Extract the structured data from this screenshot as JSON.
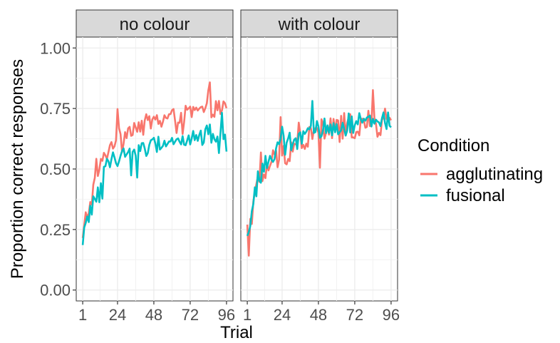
{
  "chart_data": {
    "type": "line",
    "xlabel": "Trial",
    "ylabel": "Proportion correct responses",
    "xlim": [
      1,
      96
    ],
    "ylim": [
      0,
      1
    ],
    "x_ticks": [
      1,
      24,
      48,
      72,
      96
    ],
    "x_tick_labels": [
      "1",
      "24",
      "48",
      "72",
      "96"
    ],
    "y_ticks": [
      0,
      0.25,
      0.5,
      0.75,
      1.0
    ],
    "y_tick_labels": [
      "0.00",
      "0.25",
      "0.50",
      "0.75",
      "1.00"
    ],
    "grid": true,
    "legend": {
      "title": "Condition",
      "position": "right",
      "entries": [
        {
          "label": "agglutinating",
          "color": "#F8766D"
        },
        {
          "label": "fusional",
          "color": "#00BFC4"
        }
      ]
    },
    "facets": [
      {
        "title": "no colour",
        "series": [
          {
            "name": "agglutinating",
            "color": "#F8766D",
            "keypoints": [
              [
                1,
                0.2
              ],
              [
                3,
                0.3
              ],
              [
                6,
                0.35
              ],
              [
                9,
                0.45
              ],
              [
                12,
                0.5
              ],
              [
                16,
                0.56
              ],
              [
                20,
                0.6
              ],
              [
                24,
                0.64
              ],
              [
                30,
                0.66
              ],
              [
                36,
                0.68
              ],
              [
                42,
                0.69
              ],
              [
                48,
                0.7
              ],
              [
                56,
                0.71
              ],
              [
                64,
                0.72
              ],
              [
                72,
                0.73
              ],
              [
                80,
                0.74
              ],
              [
                88,
                0.75
              ],
              [
                96,
                0.75
              ]
            ],
            "noise": 0.035
          },
          {
            "name": "fusional",
            "color": "#00BFC4",
            "keypoints": [
              [
                1,
                0.17
              ],
              [
                3,
                0.28
              ],
              [
                6,
                0.33
              ],
              [
                9,
                0.38
              ],
              [
                12,
                0.42
              ],
              [
                16,
                0.5
              ],
              [
                20,
                0.54
              ],
              [
                24,
                0.56
              ],
              [
                30,
                0.56
              ],
              [
                36,
                0.57
              ],
              [
                42,
                0.58
              ],
              [
                48,
                0.6
              ],
              [
                56,
                0.61
              ],
              [
                64,
                0.62
              ],
              [
                72,
                0.62
              ],
              [
                80,
                0.63
              ],
              [
                88,
                0.64
              ],
              [
                96,
                0.64
              ]
            ],
            "noise": 0.035
          }
        ]
      },
      {
        "title": "with colour",
        "series": [
          {
            "name": "agglutinating",
            "color": "#F8766D",
            "keypoints": [
              [
                1,
                0.24
              ],
              [
                3,
                0.3
              ],
              [
                6,
                0.38
              ],
              [
                9,
                0.44
              ],
              [
                12,
                0.48
              ],
              [
                16,
                0.52
              ],
              [
                20,
                0.54
              ],
              [
                24,
                0.56
              ],
              [
                30,
                0.59
              ],
              [
                36,
                0.61
              ],
              [
                42,
                0.63
              ],
              [
                48,
                0.65
              ],
              [
                56,
                0.66
              ],
              [
                64,
                0.67
              ],
              [
                72,
                0.68
              ],
              [
                80,
                0.68
              ],
              [
                88,
                0.69
              ],
              [
                96,
                0.7
              ]
            ],
            "noise": 0.06
          },
          {
            "name": "fusional",
            "color": "#00BFC4",
            "keypoints": [
              [
                1,
                0.2
              ],
              [
                3,
                0.3
              ],
              [
                6,
                0.4
              ],
              [
                9,
                0.47
              ],
              [
                12,
                0.51
              ],
              [
                16,
                0.54
              ],
              [
                20,
                0.57
              ],
              [
                24,
                0.59
              ],
              [
                30,
                0.61
              ],
              [
                36,
                0.63
              ],
              [
                42,
                0.64
              ],
              [
                48,
                0.66
              ],
              [
                56,
                0.67
              ],
              [
                64,
                0.68
              ],
              [
                72,
                0.69
              ],
              [
                80,
                0.69
              ],
              [
                88,
                0.7
              ],
              [
                96,
                0.7
              ]
            ],
            "noise": 0.045
          }
        ]
      }
    ]
  }
}
